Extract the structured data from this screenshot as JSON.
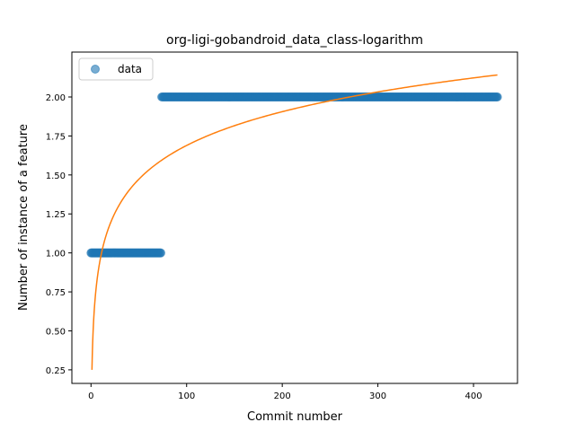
{
  "chart_data": {
    "type": "scatter",
    "title": "org-ligi-gobandroid_data_class-logarithm",
    "xlabel": "Commit number",
    "ylabel": "Number of instance of a feature",
    "xlim": [
      -20,
      446
    ],
    "ylim": [
      0.163,
      2.288
    ],
    "xticks": [
      0,
      100,
      200,
      300,
      400
    ],
    "yticks": [
      0.25,
      0.5,
      0.75,
      1.0,
      1.25,
      1.5,
      1.75,
      2.0
    ],
    "ytick_labels": [
      "0.25",
      "0.50",
      "0.75",
      "1.00",
      "1.25",
      "1.50",
      "1.75",
      "2.00"
    ],
    "grid": false,
    "legend": {
      "position": "top-left",
      "entries": [
        "data"
      ]
    },
    "series": [
      {
        "name": "data",
        "kind": "scatter",
        "color": "#1f77b4",
        "segments": [
          {
            "x_start": 0,
            "x_end": 73,
            "y": 1.0
          },
          {
            "x_start": 74,
            "x_end": 425,
            "y": 2.0
          }
        ]
      },
      {
        "kind": "line",
        "color": "#ff7f0e",
        "fit": {
          "form": "a + b*ln(x)",
          "a": 0.25,
          "b": 0.3125
        },
        "x_range": [
          1,
          425
        ]
      }
    ]
  }
}
